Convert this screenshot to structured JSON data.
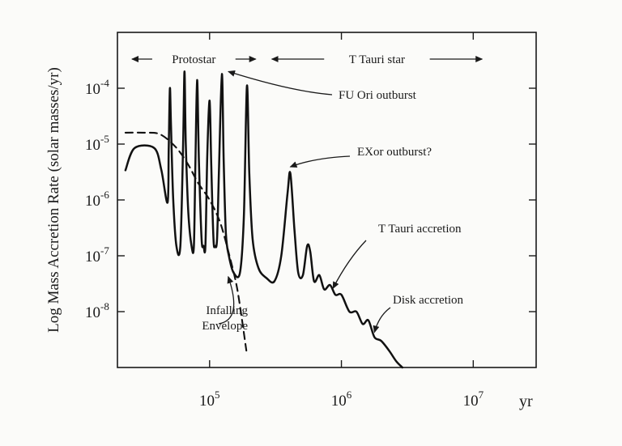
{
  "chart_data": {
    "type": "line",
    "title": "",
    "xlabel": "yr",
    "ylabel": "Log Mass Accretion Rate (solar masses/yr)",
    "x_scale": "log",
    "y_scale": "log",
    "xlim": [
      20000,
      30000000
    ],
    "ylim": [
      1e-09,
      0.001
    ],
    "x_ticks": [
      {
        "value": 100000,
        "base": "10",
        "exp": "5"
      },
      {
        "value": 1000000,
        "base": "10",
        "exp": "6"
      },
      {
        "value": 10000000,
        "base": "10",
        "exp": "7"
      }
    ],
    "y_ticks": [
      {
        "value": 0.0001,
        "base": "10",
        "exp": "-4"
      },
      {
        "value": 1e-05,
        "base": "10",
        "exp": "-5"
      },
      {
        "value": 1e-06,
        "base": "10",
        "exp": "-6"
      },
      {
        "value": 1e-07,
        "base": "10",
        "exp": "-7"
      },
      {
        "value": 1e-08,
        "base": "10",
        "exp": "-8"
      }
    ],
    "grid": false,
    "legend": "none",
    "phases": [
      {
        "label": "Protostar",
        "x_start": 20000,
        "x_end": 230000
      },
      {
        "label": "T Tauri star",
        "x_start": 230000,
        "x_end": 12000000
      }
    ],
    "series": [
      {
        "style": "solid",
        "points": [
          [
            23000,
            3.4e-06
          ],
          [
            27000,
            8.5e-06
          ],
          [
            38000,
            8.5e-06
          ],
          [
            43000,
            3.5e-06
          ],
          [
            48000,
            9e-07
          ],
          [
            49000,
            8e-06
          ],
          [
            50000,
            0.0001
          ],
          [
            51000,
            2e-05
          ],
          [
            53000,
            1e-06
          ],
          [
            56000,
            1.5e-07
          ],
          [
            60000,
            1.5e-07
          ],
          [
            63000,
            1e-05
          ],
          [
            64500,
            0.0002
          ],
          [
            66000,
            1e-05
          ],
          [
            69000,
            6e-07
          ],
          [
            73000,
            1.5e-07
          ],
          [
            76000,
            1.5e-07
          ],
          [
            78000,
            4e-06
          ],
          [
            80500,
            0.00014
          ],
          [
            83000,
            5e-06
          ],
          [
            87000,
            2e-07
          ],
          [
            90000,
            1.5e-07
          ],
          [
            93000,
            1.5e-07
          ],
          [
            96000,
            6e-06
          ],
          [
            100000,
            6e-05
          ],
          [
            103000,
            4e-06
          ],
          [
            107000,
            2e-07
          ],
          [
            110000,
            1.5e-07
          ],
          [
            114000,
            2e-07
          ],
          [
            118000,
            4e-06
          ],
          [
            124000,
            0.00018
          ],
          [
            128000,
            5e-06
          ],
          [
            133000,
            2.5e-07
          ],
          [
            140000,
            1e-07
          ],
          [
            152000,
            5e-08
          ],
          [
            170000,
            5e-08
          ],
          [
            182000,
            5e-07
          ],
          [
            192000,
            0.00011
          ],
          [
            200000,
            3e-06
          ],
          [
            212000,
            2e-07
          ],
          [
            235000,
            6e-08
          ],
          [
            270000,
            4e-08
          ],
          [
            310000,
            3.5e-08
          ],
          [
            350000,
            1e-07
          ],
          [
            390000,
            1.3e-06
          ],
          [
            410000,
            3e-06
          ],
          [
            440000,
            3e-07
          ],
          [
            470000,
            5e-08
          ],
          [
            510000,
            4.5e-08
          ],
          [
            550000,
            1.5e-07
          ],
          [
            580000,
            1.2e-07
          ],
          [
            620000,
            3.5e-08
          ],
          [
            680000,
            4.5e-08
          ],
          [
            740000,
            2.5e-08
          ],
          [
            820000,
            3e-08
          ],
          [
            900000,
            2e-08
          ],
          [
            1000000,
            2e-08
          ],
          [
            1150000,
            1e-08
          ],
          [
            1300000,
            1e-08
          ],
          [
            1450000,
            6e-09
          ],
          [
            1600000,
            7e-09
          ],
          [
            1780000,
            3.5e-09
          ],
          [
            2000000,
            3e-09
          ],
          [
            2300000,
            2e-09
          ],
          [
            2600000,
            1.3e-09
          ],
          [
            2900000,
            1e-09
          ]
        ]
      },
      {
        "style": "dashed",
        "points": [
          [
            23000,
            1.6e-05
          ],
          [
            32000,
            1.6e-05
          ],
          [
            42000,
            1.5e-05
          ],
          [
            55000,
            9e-06
          ],
          [
            68000,
            4.5e-06
          ],
          [
            82000,
            2e-06
          ],
          [
            100000,
            1e-06
          ],
          [
            120000,
            4e-07
          ],
          [
            140000,
            1.1e-07
          ],
          [
            160000,
            3e-08
          ],
          [
            175000,
            8e-09
          ],
          [
            190000,
            2e-09
          ]
        ]
      }
    ],
    "annotations": [
      {
        "lines": [
          "FU  Ori  outburst"
        ],
        "points_to": [
          124000,
          0.00018
        ]
      },
      {
        "lines": [
          "EXor outburst?"
        ],
        "points_to": [
          410000,
          3e-06
        ]
      },
      {
        "lines": [
          "T  Tauri  accretion"
        ],
        "points_to": [
          900000,
          2e-08
        ]
      },
      {
        "lines": [
          "Disk accretion"
        ],
        "points_to": [
          1780000,
          3.5e-09
        ]
      },
      {
        "lines": [
          "Infalling",
          "Envelope"
        ],
        "points_to": [
          155000,
          5e-08
        ]
      }
    ]
  }
}
